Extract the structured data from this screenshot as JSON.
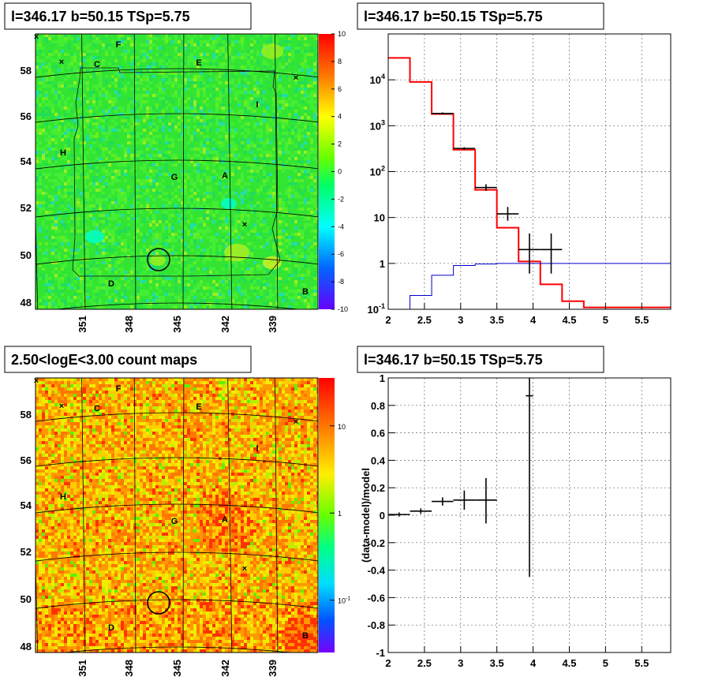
{
  "panels": {
    "tl_title": "l=346.17 b=50.15 TSp=5.75",
    "tr_title": "l=346.17 b=50.15 TSp=5.75",
    "bl_title": "2.50<logE<3.00 count maps",
    "br_title": "l=346.17 b=50.15 TSp=5.75"
  },
  "colors": {
    "black": "#000000",
    "red": "#ff0000",
    "blue": "#0000cc"
  },
  "chart_data": [
    {
      "type": "heatmap",
      "name": "residual significance map",
      "x_tick_labels": [
        "351",
        "348",
        "345",
        "342",
        "339"
      ],
      "y_tick_labels": [
        "48",
        "50",
        "52",
        "54",
        "56",
        "58"
      ],
      "colorbar": {
        "range": [
          -10,
          10
        ],
        "ticks": [
          "10",
          "8",
          "6",
          "4",
          "2",
          "0",
          "-2",
          "-4",
          "-6",
          "-8",
          "-10"
        ]
      },
      "region_labels": [
        "F",
        "C",
        "E",
        "I",
        "H",
        "G",
        "A",
        "D",
        "B"
      ],
      "marked_source": {
        "l": 346.17,
        "b": 50.15
      }
    },
    {
      "type": "line",
      "name": "counts spectrum",
      "x_ticks": [
        "2",
        "2.5",
        "3",
        "3.5",
        "4",
        "4.5",
        "5",
        "5.5"
      ],
      "xlim": [
        2,
        5.9
      ],
      "y_scale": "log",
      "ylim": [
        0.1,
        100000
      ],
      "y_ticks": [
        {
          "value": 0.1,
          "base": "10",
          "exp": "-1"
        },
        {
          "value": 1,
          "base": "1",
          "exp": ""
        },
        {
          "value": 10,
          "base": "10",
          "exp": ""
        },
        {
          "value": 100,
          "base": "10",
          "exp": "2"
        },
        {
          "value": 1000,
          "base": "10",
          "exp": "3"
        },
        {
          "value": 10000,
          "base": "10",
          "exp": "4"
        }
      ],
      "grid": true,
      "series": [
        {
          "style": "histogram",
          "color": "#ff0000",
          "edges": [
            2.0,
            2.3,
            2.6,
            2.9,
            3.2,
            3.5,
            3.8,
            4.1,
            4.4,
            4.7,
            5.9
          ],
          "values": [
            30000,
            9000,
            1800,
            300,
            40,
            6,
            1.1,
            0.35,
            0.15,
            0.11
          ]
        },
        {
          "style": "histogram",
          "color": "#0000cc",
          "edges": [
            2.3,
            2.6,
            2.9,
            3.2,
            3.5,
            5.9
          ],
          "values": [
            0.2,
            0.55,
            0.9,
            0.97,
            1.0
          ]
        },
        {
          "style": "errorbars",
          "color": "#000000",
          "points": [
            {
              "x": 2.75,
              "xerr": 0.15,
              "y": 1850,
              "ylo": 1750,
              "yhi": 1950
            },
            {
              "x": 3.05,
              "xerr": 0.15,
              "y": 320,
              "ylo": 300,
              "yhi": 340
            },
            {
              "x": 3.35,
              "xerr": 0.15,
              "y": 45,
              "ylo": 38,
              "yhi": 53
            },
            {
              "x": 3.65,
              "xerr": 0.15,
              "y": 12,
              "ylo": 8.5,
              "yhi": 17
            },
            {
              "x": 3.95,
              "xerr": 0.15,
              "y": 2,
              "ylo": 0.6,
              "yhi": 4.5
            },
            {
              "x": 4.25,
              "xerr": 0.15,
              "y": 2,
              "ylo": 0.6,
              "yhi": 4.5
            }
          ]
        }
      ]
    },
    {
      "type": "heatmap",
      "name": "count map",
      "x_tick_labels": [
        "351",
        "348",
        "345",
        "342",
        "339"
      ],
      "y_tick_labels": [
        "48",
        "50",
        "52",
        "54",
        "56",
        "58"
      ],
      "colorbar": {
        "scale": "log",
        "ticks": [
          {
            "value": 10,
            "base": "10",
            "exp": ""
          },
          {
            "value": 1,
            "base": "1",
            "exp": ""
          },
          {
            "value": 0.1,
            "base": "10",
            "exp": "-1"
          }
        ]
      },
      "region_labels": [
        "F",
        "C",
        "E",
        "I",
        "H",
        "G",
        "A",
        "D",
        "B"
      ],
      "marked_source": {
        "l": 346.17,
        "b": 50.15
      }
    },
    {
      "type": "scatter",
      "name": "residuals",
      "ylabel": "(data-model)/model",
      "x_ticks": [
        "2",
        "2.5",
        "3",
        "3.5",
        "4",
        "4.5",
        "5",
        "5.5"
      ],
      "xlim": [
        2,
        5.9
      ],
      "y_ticks": [
        "1",
        "0.8",
        "0.6",
        "0.4",
        "0.2",
        "0",
        "-0.2",
        "-0.4",
        "-0.6",
        "-0.8",
        "-1"
      ],
      "ylim": [
        -1,
        1
      ],
      "grid": true,
      "points": [
        {
          "x": 2.15,
          "xerr": 0.15,
          "y": 0.005,
          "ylo": -0.01,
          "yhi": 0.02
        },
        {
          "x": 2.45,
          "xerr": 0.15,
          "y": 0.03,
          "ylo": 0.01,
          "yhi": 0.05
        },
        {
          "x": 2.75,
          "xerr": 0.15,
          "y": 0.1,
          "ylo": 0.07,
          "yhi": 0.13
        },
        {
          "x": 3.05,
          "xerr": 0.15,
          "y": 0.11,
          "ylo": 0.04,
          "yhi": 0.18
        },
        {
          "x": 3.35,
          "xerr": 0.15,
          "y": 0.11,
          "ylo": -0.06,
          "yhi": 0.27
        },
        {
          "x": 3.95,
          "xerr": 0.05,
          "y": 0.87,
          "ylo": -0.45,
          "yhi": 1.0
        }
      ]
    }
  ]
}
